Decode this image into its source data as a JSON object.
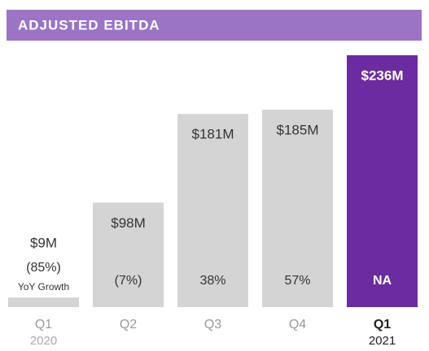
{
  "chart_data": {
    "type": "bar",
    "title": "ADJUSTED EBITDA",
    "categories": [
      "Q1",
      "Q2",
      "Q3",
      "Q4",
      "Q1"
    ],
    "years": [
      "2020",
      null,
      null,
      null,
      "2021"
    ],
    "values": [
      9,
      98,
      181,
      185,
      236
    ],
    "value_labels": [
      "$9M",
      "$98M",
      "$181M",
      "$185M",
      "$236M"
    ],
    "growth_labels": [
      "(85%)",
      "(7%)",
      "38%",
      "57%",
      "NA"
    ],
    "growth_title": "YoY Growth",
    "colors": [
      "#d4d4d4",
      "#d4d4d4",
      "#d4d4d4",
      "#d4d4d4",
      "#6a2c9e"
    ],
    "banner_color": "#9b74c6"
  }
}
